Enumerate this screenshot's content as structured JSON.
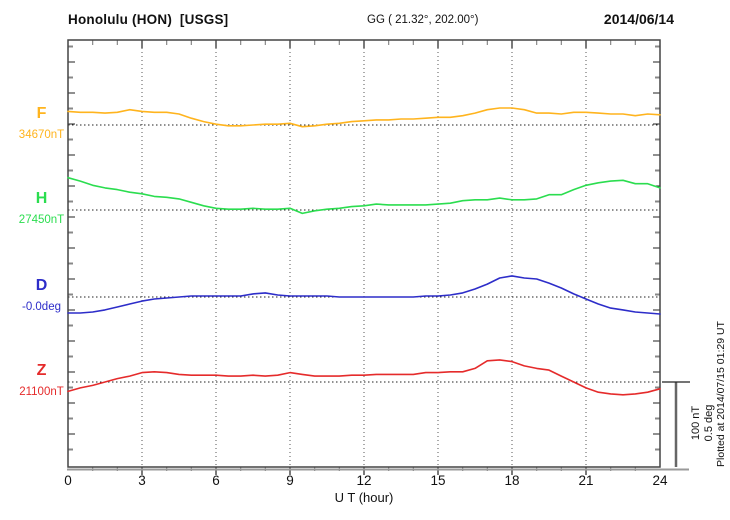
{
  "header": {
    "station": "Honolulu (HON)  [USGS]",
    "coords": "GG ( 21.32°, 202.00°)",
    "date": "2014/06/14"
  },
  "x_axis": {
    "label": "U T (hour)",
    "ticks": [
      "0",
      "3",
      "6",
      "9",
      "12",
      "15",
      "18",
      "21",
      "24"
    ]
  },
  "scale_bar": {
    "label_nt": "100 nT",
    "label_deg": "0.5 deg"
  },
  "footer": {
    "plotted_at": "Plotted at 2014/07/15 01:29 UT"
  },
  "chart_data": {
    "type": "line",
    "x_unit": "UT hour",
    "x_start": 0,
    "x_step": 0.5,
    "x_range": [
      0,
      24
    ],
    "x_ticks": [
      0,
      3,
      6,
      9,
      12,
      15,
      18,
      21,
      24
    ],
    "grid": "dotted vertical at 3h intervals, dotted horizontal at each channel baseline",
    "scale_bar": {
      "nT": 100,
      "deg": 0.5
    },
    "series": [
      {
        "name": "F",
        "baseline_label": "34670nT",
        "base": 34670,
        "unit": "nT",
        "color": "#FFB41E",
        "values": [
          34686,
          34685,
          34685,
          34684,
          34685,
          34688,
          34686,
          34685,
          34685,
          34683,
          34678,
          34674,
          34671,
          34669,
          34669,
          34670,
          34671,
          34671,
          34672,
          34668,
          34669,
          34671,
          34672,
          34674,
          34675,
          34676,
          34676,
          34677,
          34677,
          34678,
          34679,
          34679,
          34681,
          34684,
          34688,
          34690,
          34690,
          34688,
          34684,
          34684,
          34683,
          34685,
          34685,
          34684,
          34683,
          34683,
          34681,
          34683,
          34682
        ]
      },
      {
        "name": "H",
        "baseline_label": "27450nT",
        "base": 27450,
        "unit": "nT",
        "color": "#2BDD4F",
        "values": [
          27488,
          27484,
          27479,
          27476,
          27474,
          27471,
          27469,
          27466,
          27465,
          27463,
          27459,
          27455,
          27452,
          27451,
          27451,
          27452,
          27451,
          27451,
          27452,
          27446,
          27449,
          27451,
          27452,
          27454,
          27455,
          27457,
          27456,
          27456,
          27456,
          27456,
          27457,
          27458,
          27461,
          27462,
          27462,
          27464,
          27462,
          27462,
          27463,
          27468,
          27468,
          27474,
          27479,
          27482,
          27484,
          27485,
          27481,
          27481,
          27476
        ]
      },
      {
        "name": "D",
        "baseline_label": "-0.0deg",
        "base": 0,
        "unit": "deg",
        "color": "#2D2DC9",
        "values": [
          -0.094,
          -0.094,
          -0.088,
          -0.076,
          -0.059,
          -0.041,
          -0.024,
          -0.012,
          -0.006,
          0.0,
          0.006,
          0.006,
          0.006,
          0.006,
          0.006,
          0.018,
          0.024,
          0.012,
          0.006,
          0.006,
          0.006,
          0.006,
          0.0,
          0.0,
          0.0,
          0.0,
          0.0,
          0.0,
          0.0,
          0.006,
          0.006,
          0.012,
          0.024,
          0.047,
          0.076,
          0.112,
          0.124,
          0.112,
          0.106,
          0.082,
          0.053,
          0.018,
          -0.012,
          -0.041,
          -0.065,
          -0.076,
          -0.088,
          -0.094,
          -0.1
        ]
      },
      {
        "name": "Z",
        "baseline_label": "21100nT",
        "base": 21100,
        "unit": "nT",
        "color": "#E52B2B",
        "values": [
          21089,
          21093,
          21096,
          21100,
          21104,
          21107,
          21111,
          21112,
          21111,
          21109,
          21108,
          21108,
          21108,
          21107,
          21107,
          21108,
          21107,
          21108,
          21111,
          21109,
          21107,
          21107,
          21107,
          21108,
          21108,
          21109,
          21109,
          21109,
          21109,
          21111,
          21111,
          21112,
          21112,
          21116,
          21125,
          21126,
          21124,
          21119,
          21116,
          21114,
          21107,
          21100,
          21093,
          21088,
          21086,
          21085,
          21086,
          21088,
          21092
        ]
      }
    ]
  }
}
